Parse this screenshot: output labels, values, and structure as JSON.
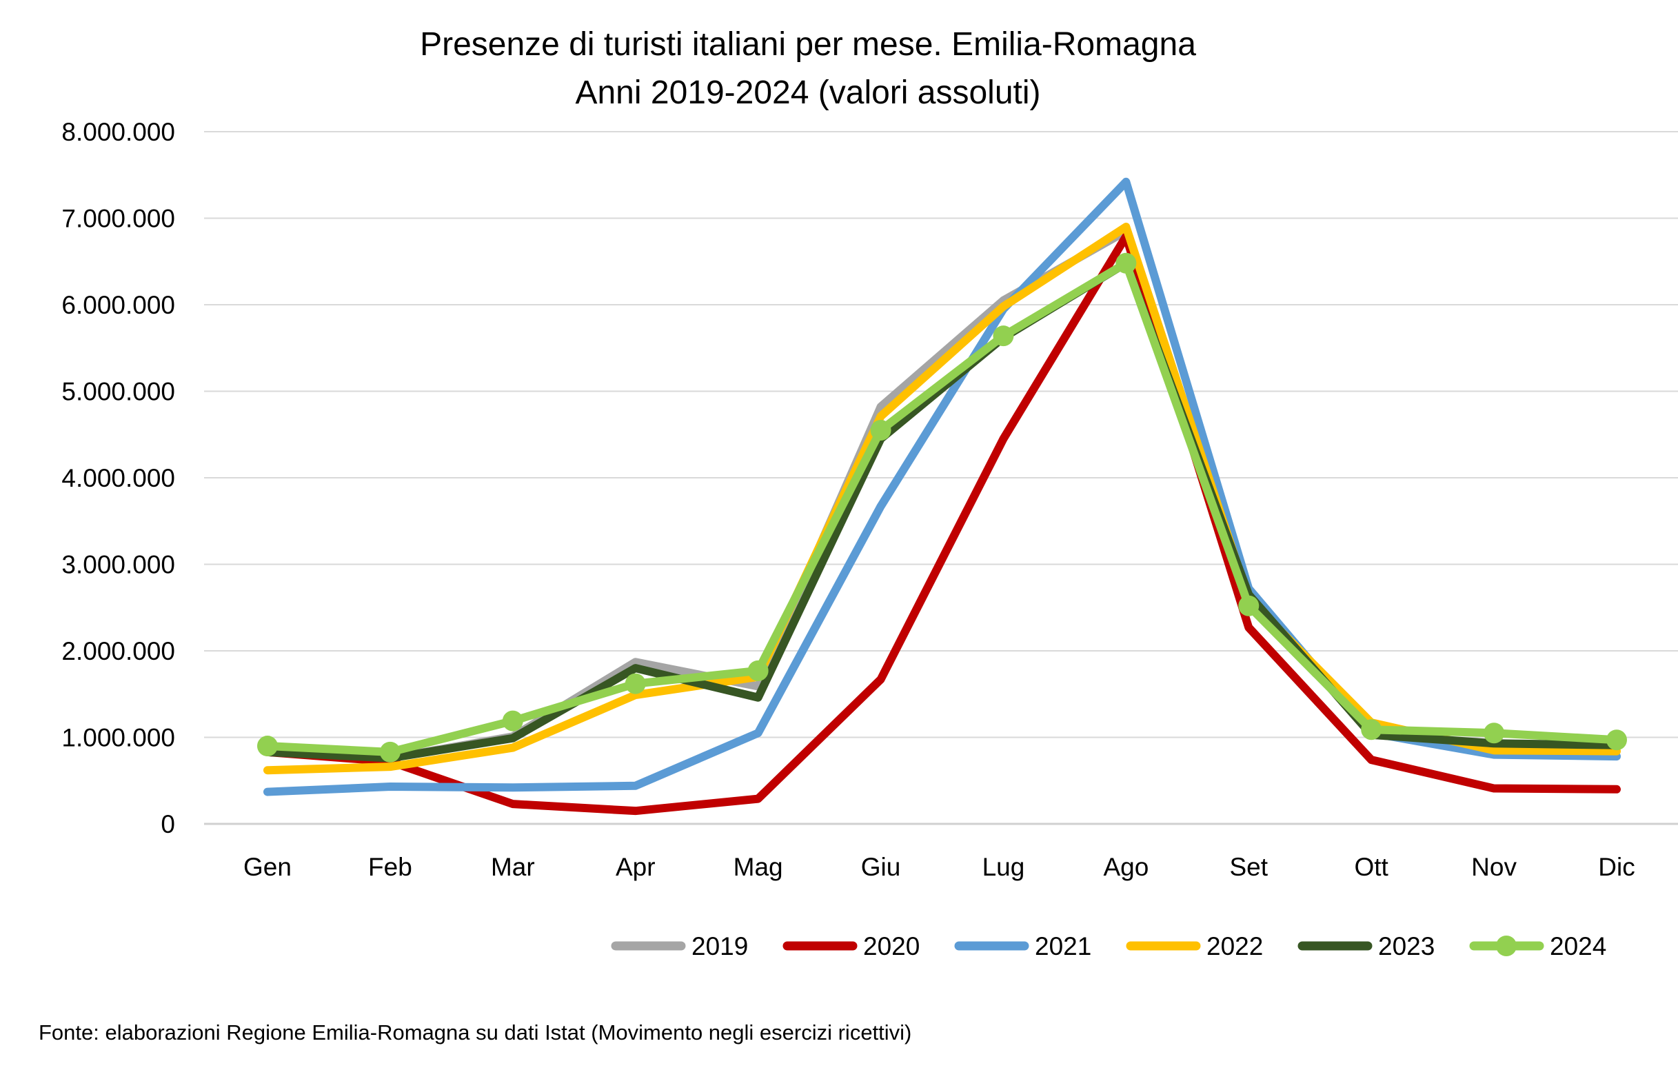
{
  "chart_data": {
    "type": "line",
    "title": "Presenze di turisti italiani per mese. Emilia-Romagna",
    "subtitle": "Anni 2019-2024 (valori assoluti)",
    "xlabel": "",
    "ylabel": "",
    "ylim": [
      0,
      8000000
    ],
    "yticks": [
      0,
      1000000,
      2000000,
      3000000,
      4000000,
      5000000,
      6000000,
      7000000,
      8000000
    ],
    "ytick_labels": [
      "0",
      "1.000.000",
      "2.000.000",
      "3.000.000",
      "4.000.000",
      "5.000.000",
      "6.000.000",
      "7.000.000",
      "8.000.000"
    ],
    "grid": true,
    "legend_position": "bottom-right",
    "categories": [
      "Gen",
      "Feb",
      "Mar",
      "Apr",
      "Mag",
      "Giu",
      "Lug",
      "Ago",
      "Set",
      "Ott",
      "Nov",
      "Dic"
    ],
    "series": [
      {
        "name": "2019",
        "color": "#A5A5A5",
        "markers": false,
        "values": [
          830000,
          760000,
          1010000,
          1870000,
          1590000,
          4820000,
          6050000,
          6850000,
          2650000,
          1030000,
          920000,
          900000
        ]
      },
      {
        "name": "2020",
        "color": "#C00000",
        "markers": false,
        "values": [
          830000,
          720000,
          230000,
          150000,
          290000,
          1670000,
          4450000,
          6790000,
          2270000,
          740000,
          410000,
          400000
        ]
      },
      {
        "name": "2021",
        "color": "#5B9BD5",
        "markers": false,
        "values": [
          370000,
          430000,
          420000,
          440000,
          1050000,
          3670000,
          5950000,
          7420000,
          2720000,
          1050000,
          800000,
          780000
        ]
      },
      {
        "name": "2022",
        "color": "#FFC000",
        "markers": false,
        "values": [
          620000,
          660000,
          880000,
          1490000,
          1700000,
          4710000,
          5980000,
          6900000,
          2600000,
          1170000,
          850000,
          840000
        ]
      },
      {
        "name": "2023",
        "color": "#375623",
        "markers": false,
        "values": [
          830000,
          760000,
          990000,
          1800000,
          1460000,
          4450000,
          5620000,
          6480000,
          2650000,
          1030000,
          930000,
          910000
        ]
      },
      {
        "name": "2024",
        "color": "#92D050",
        "markers": true,
        "values": [
          900000,
          830000,
          1190000,
          1620000,
          1770000,
          4550000,
          5640000,
          6480000,
          2520000,
          1090000,
          1050000,
          970000
        ]
      }
    ],
    "source": "Fonte: elaborazioni Regione Emilia-Romagna su dati Istat (Movimento negli esercizi ricettivi)"
  },
  "colors": {
    "gridline": "#D9D9D9",
    "axis": "#D9D9D9"
  }
}
